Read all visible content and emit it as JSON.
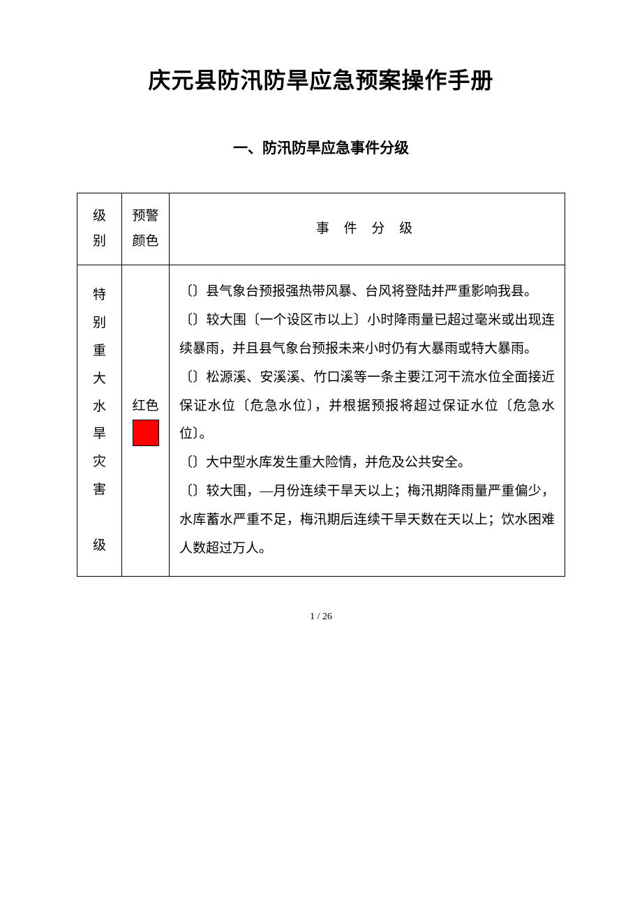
{
  "document": {
    "main_title": "庆元县防汛防旱应急预案操作手册",
    "section_title": "一、防汛防旱应急事件分级",
    "page_number": "1 / 26"
  },
  "table": {
    "headers": {
      "level": "级 别",
      "color": "预警颜色",
      "event": "事 件 分 级"
    },
    "row1": {
      "level_chars": [
        "特",
        "别",
        "重",
        "大",
        "水",
        "旱",
        "灾",
        "害",
        "",
        "级"
      ],
      "color_label": "红色",
      "color_hex": "#ff0000",
      "events": [
        "〔〕县气象台预报强热带风暴、台风将登陆并严重影响我县。",
        "〔〕较大围〔一个设区市以上〕小时降雨量已超过毫米或出现连续暴雨，并且县气象台预报未来小时仍有大暴雨或特大暴雨。",
        "〔〕松源溪、安溪溪、竹口溪等一条主要江河干流水位全面接近保证水位〔危急水位〕，并根据预报将超过保证水位〔危急水位〕。",
        "〔〕大中型水库发生重大险情，并危及公共安全。",
        "〔〕较大围，—月份连续干旱天以上；梅汛期降雨量严重偏少，水库蓄水严重不足，梅汛期后连续干旱天数在天以上；饮水困难人数超过万人。"
      ]
    }
  }
}
